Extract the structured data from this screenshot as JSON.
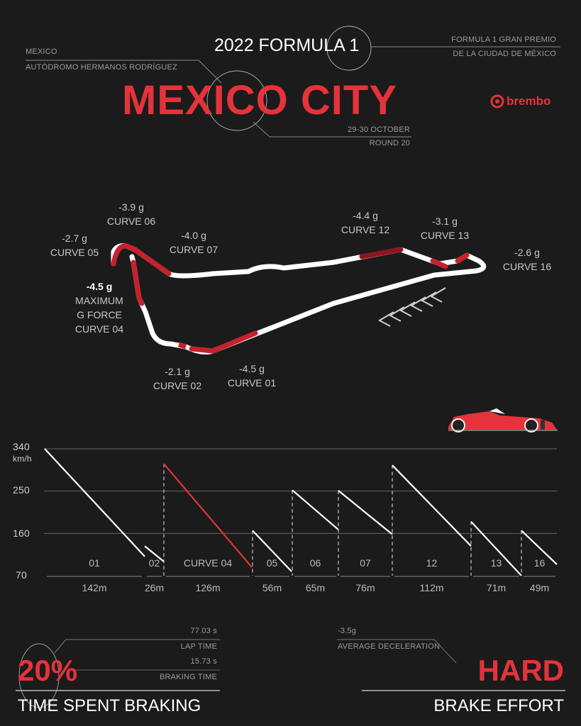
{
  "header": {
    "title_top": "2022 FORMULA 1",
    "city": "MEXICO CITY",
    "country": "MEXICO",
    "circuit": "AUTÓDROMO HERMANOS RODRÍGUEZ",
    "event_line1": "FORMULA 1 GRAN PREMIO",
    "event_line2": "DE LA CIUDAD DE MÉXICO",
    "dates": "29-30 OCTOBER",
    "round": "ROUND 20",
    "brand": "brembo"
  },
  "colors": {
    "accent": "#e5323b",
    "background": "#1b1b1b",
    "text": "#ffffff"
  },
  "track_labels": [
    {
      "g": "-3.9 g",
      "curve": "CURVE 06"
    },
    {
      "g": "-2.7 g",
      "curve": "CURVE 05"
    },
    {
      "g": "-4.0 g",
      "curve": "CURVE 07"
    },
    {
      "g": "-4.4 g",
      "curve": "CURVE 12"
    },
    {
      "g": "-3.1 g",
      "curve": "CURVE 13"
    },
    {
      "g": "-2.6 g",
      "curve": "CURVE 16"
    },
    {
      "g": "-4.5 g",
      "note1": "MAXIMUM",
      "note2": "G FORCE",
      "curve": "CURVE 04"
    },
    {
      "g": "-2.1 g",
      "curve": "CURVE 02"
    },
    {
      "g": "-4.5 g",
      "curve": "CURVE 01"
    }
  ],
  "chart_data": {
    "type": "line",
    "ylabel": "km/h",
    "yticks": [
      "340",
      "250",
      "160",
      "70"
    ],
    "ylim": [
      70,
      340
    ],
    "grid": true,
    "segments": [
      {
        "label": "01",
        "distance": "142m",
        "start": 340,
        "end": 111
      },
      {
        "label": "02",
        "distance": "26m",
        "start": 133,
        "end": 100
      },
      {
        "label": "CURVE 04",
        "distance": "126m",
        "start": 308,
        "end": 88,
        "highlight": true
      },
      {
        "label": "05",
        "distance": "56m",
        "start": 166,
        "end": 79
      },
      {
        "label": "06",
        "distance": "65m",
        "start": 252,
        "end": 168
      },
      {
        "label": "07",
        "distance": "76m",
        "start": 251,
        "end": 158
      },
      {
        "label": "12",
        "distance": "112m",
        "start": 305,
        "end": 133
      },
      {
        "label": "13",
        "distance": "71m",
        "start": 185,
        "end": 70
      },
      {
        "label": "16",
        "distance": "49m",
        "start": 166,
        "end": 94
      }
    ]
  },
  "stats": {
    "lap_time_value": "77.03 s",
    "lap_time_label": "LAP TIME",
    "braking_time_value": "15.73 s",
    "braking_time_label": "BRAKING TIME",
    "percent": "20%",
    "percent_label": "TIME SPENT BRAKING",
    "avg_decel_value": "-3.5g",
    "avg_decel_label": "AVERAGE DECELERATION",
    "effort": "HARD",
    "effort_label": "BRAKE EFFORT"
  }
}
